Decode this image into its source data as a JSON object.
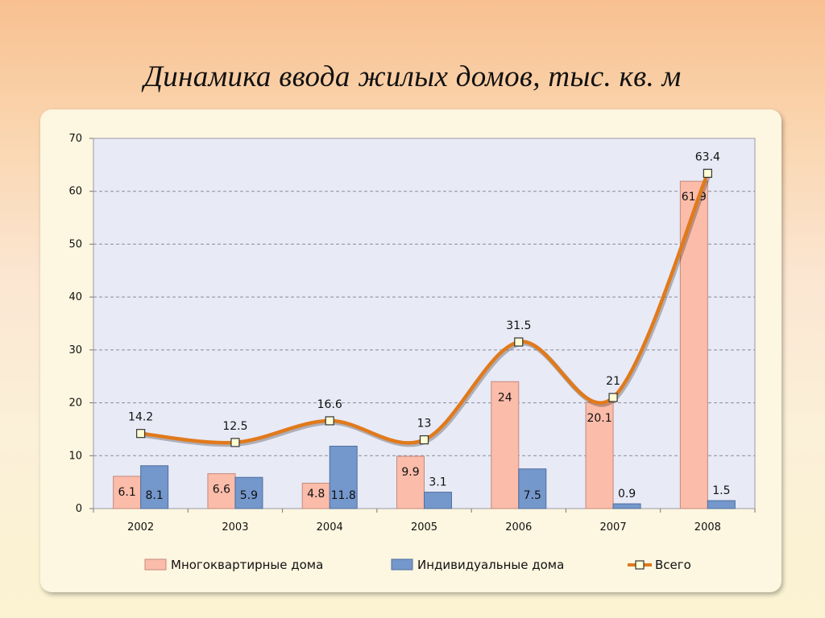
{
  "slide": {
    "title": "Динамика ввода жилых домов, тыс. кв. м"
  },
  "chart_data": {
    "type": "bar",
    "categories": [
      "2002",
      "2003",
      "2004",
      "2005",
      "2006",
      "2007",
      "2008"
    ],
    "series": [
      {
        "name": "Многоквартирные дома",
        "type": "bar",
        "color": "#fbbcaa",
        "values": [
          6.1,
          6.6,
          4.8,
          9.9,
          24,
          20.1,
          61.9
        ]
      },
      {
        "name": "Индивидуальные дома",
        "type": "bar",
        "color": "#7497cc",
        "values": [
          8.1,
          5.9,
          11.8,
          3.1,
          7.5,
          0.9,
          1.5
        ]
      },
      {
        "name": "Всего",
        "type": "line",
        "color": "#e07a1c",
        "values": [
          14.2,
          12.5,
          16.6,
          13,
          31.5,
          21,
          63.4
        ]
      }
    ],
    "ylim": [
      0,
      70
    ],
    "yticks": [
      0,
      10,
      20,
      30,
      40,
      50,
      60,
      70
    ],
    "grid": true,
    "legend_position": "bottom",
    "plot_background": "#e8eaf6"
  }
}
